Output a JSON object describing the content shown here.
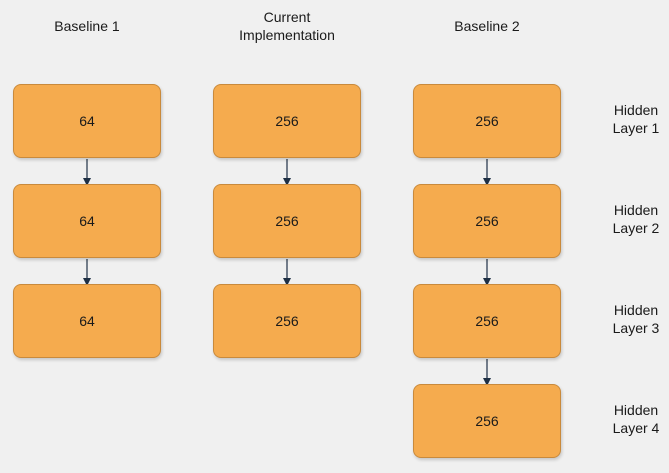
{
  "columns": [
    {
      "title": "Baseline 1",
      "layers": [
        "64",
        "64",
        "64"
      ]
    },
    {
      "title": "Current\nImplementation",
      "layers": [
        "256",
        "256",
        "256"
      ]
    },
    {
      "title": "Baseline 2",
      "layers": [
        "256",
        "256",
        "256",
        "256"
      ]
    }
  ],
  "row_labels": [
    "Hidden\nLayer 1",
    "Hidden\nLayer 2",
    "Hidden\nLayer 3",
    "Hidden\nLayer 4"
  ],
  "colors": {
    "box_fill": "#f5ab4e",
    "box_border": "#c98a3c",
    "arrow": "#1f3045",
    "background": "#f0f0f0"
  }
}
